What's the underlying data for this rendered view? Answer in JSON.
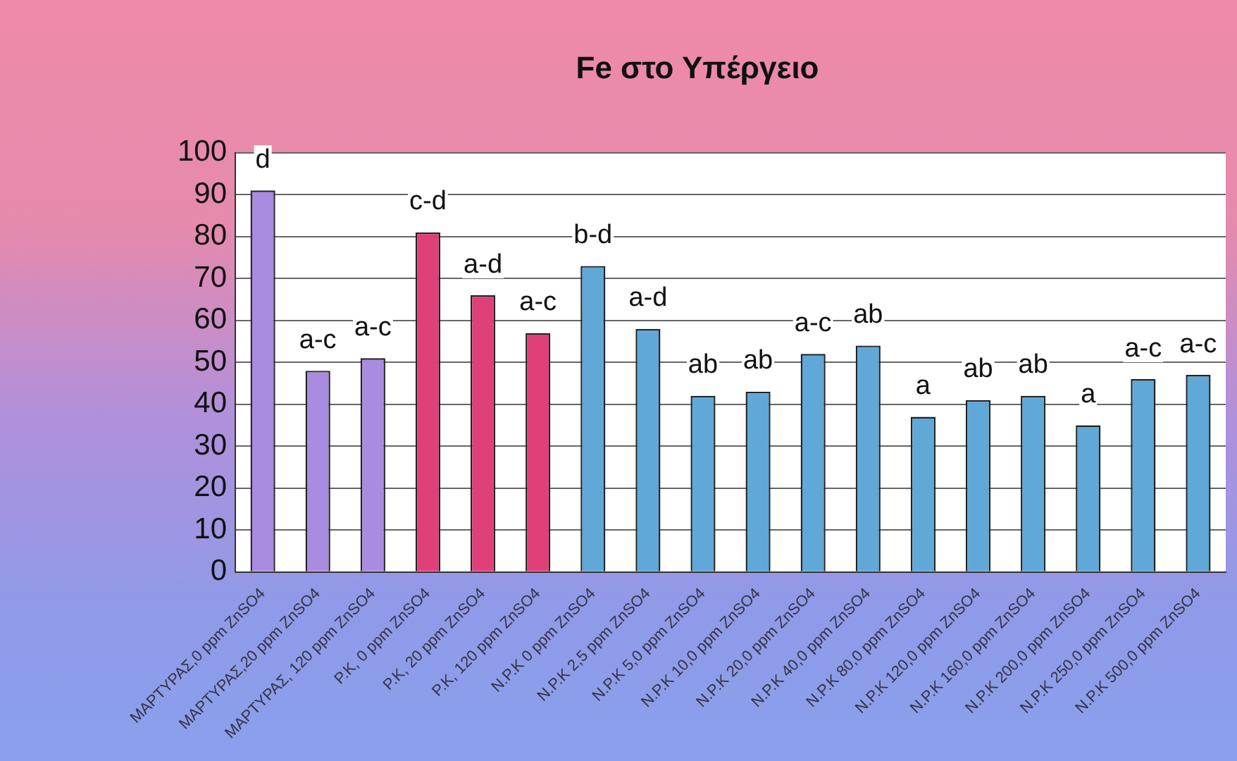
{
  "chart_data": {
    "type": "bar",
    "title": "Fe στο Υπέργειο",
    "categories": [
      "ΜΑΡΤΥΡΑΣ,0 ppm ZnSO4",
      "ΜΑΡΤΥΡΑΣ,20 ppm ZnSO4",
      "ΜΑΡΤΥΡΑΣ, 120 ppm ZnSO4",
      "P.K, 0 ppm ZnSO4",
      "P.K, 20 ppm ZnSO4",
      "P.K, 120 ppm ZnSO4",
      "N.P.K 0 ppm ZnSO4",
      "N.P.K 2,5 ppm ZnSO4",
      "N.P.K 5,0 ppm ZnSO4",
      "N.P.K 10,0 ppm ZnSO4",
      "N.P.K 20,0 ppm ZnSO4",
      "N.P.K 40,0 ppm ZnSO4",
      "N.P.K 80,0 ppm ZnSO4",
      "N.P.K 120,0 ppm ZnSO4",
      "N.P.K 160,0 ppm ZnSO4",
      "N.P.K 200,0 ppm ZnSO4",
      "N.P.K 250,0 ppm ZnSO4",
      "N.P.K 500,0 ppm ZnSO4"
    ],
    "values": [
      91,
      48,
      51,
      81,
      66,
      57,
      73,
      58,
      42,
      43,
      52,
      54,
      37,
      41,
      42,
      35,
      46,
      47
    ],
    "value_labels": [
      "d",
      "a-c",
      "a-c",
      "c-d",
      "a-d",
      "a-c",
      "b-d",
      "a-d",
      "ab",
      "ab",
      "a-c",
      "ab",
      "a",
      "ab",
      "ab",
      "a",
      "a-c",
      "a-c"
    ],
    "colors": [
      "#a98be0",
      "#a98be0",
      "#a98be0",
      "#e0407a",
      "#e0407a",
      "#e0407a",
      "#5fa8d8",
      "#5fa8d8",
      "#5fa8d8",
      "#5fa8d8",
      "#5fa8d8",
      "#5fa8d8",
      "#5fa8d8",
      "#5fa8d8",
      "#5fa8d8",
      "#5fa8d8",
      "#5fa8d8",
      "#5fa8d8"
    ],
    "ylim": [
      0,
      100
    ],
    "yticks": [
      0,
      10,
      20,
      30,
      40,
      50,
      60,
      70,
      80,
      90,
      100
    ],
    "grid": "y",
    "legend": false
  }
}
